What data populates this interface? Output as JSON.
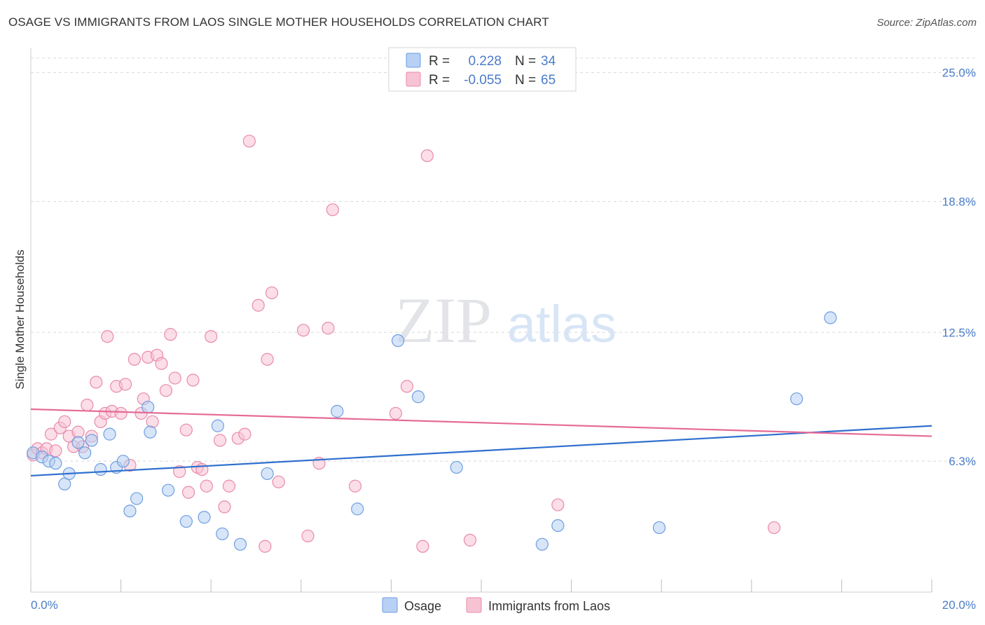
{
  "title": "OSAGE VS IMMIGRANTS FROM LAOS SINGLE MOTHER HOUSEHOLDS CORRELATION CHART",
  "source": "Source: ZipAtlas.com",
  "watermark": {
    "zip": "ZIP",
    "atlas": "atlas"
  },
  "colors": {
    "osage_fill": "#b7d0f4",
    "osage_stroke": "#6e9ee0",
    "osage_line": "#2f6fce",
    "laos_fill": "#f7c3d3",
    "laos_stroke": "#e98aab",
    "laos_line": "#e56b96",
    "accent_text": "#4a7cc8",
    "grid": "#d9d9d9"
  },
  "legend": {
    "rows": [
      {
        "r_label": "R =",
        "r_value": "0.228",
        "n_label": "N =",
        "n_value": "34"
      },
      {
        "r_label": "R =",
        "r_value": "-0.055",
        "n_label": "N =",
        "n_value": "65"
      }
    ]
  },
  "chart_data": {
    "type": "scatter",
    "title": "OSAGE VS IMMIGRANTS FROM LAOS SINGLE MOTHER HOUSEHOLDS CORRELATION CHART",
    "xlabel": "",
    "ylabel": "Single Mother Households",
    "xlim": [
      0,
      20
    ],
    "ylim": [
      0,
      26.2
    ],
    "x_tick_labels": [
      "0.0%",
      "20.0%"
    ],
    "y_ticks": [
      6.3,
      12.5,
      18.8,
      25.0
    ],
    "y_tick_labels": [
      "6.3%",
      "12.5%",
      "18.8%",
      "25.0%"
    ],
    "grid": true,
    "legend_position": "top-center",
    "series": [
      {
        "name": "Osage",
        "r": 0.228,
        "n": 34,
        "trend": {
          "x": [
            0,
            20
          ],
          "y": [
            5.6,
            8.0
          ]
        },
        "points": [
          {
            "x": 0.05,
            "y": 6.7
          },
          {
            "x": 0.25,
            "y": 6.5
          },
          {
            "x": 0.4,
            "y": 6.3
          },
          {
            "x": 0.55,
            "y": 6.2
          },
          {
            "x": 0.75,
            "y": 5.2
          },
          {
            "x": 0.85,
            "y": 5.7
          },
          {
            "x": 1.05,
            "y": 7.2
          },
          {
            "x": 1.2,
            "y": 6.7
          },
          {
            "x": 1.35,
            "y": 7.3
          },
          {
            "x": 1.55,
            "y": 5.9
          },
          {
            "x": 1.75,
            "y": 7.6
          },
          {
            "x": 1.9,
            "y": 6.0
          },
          {
            "x": 2.05,
            "y": 6.3
          },
          {
            "x": 2.2,
            "y": 3.9
          },
          {
            "x": 2.35,
            "y": 4.5
          },
          {
            "x": 2.6,
            "y": 8.9
          },
          {
            "x": 2.65,
            "y": 7.7
          },
          {
            "x": 3.05,
            "y": 4.9
          },
          {
            "x": 3.45,
            "y": 3.4
          },
          {
            "x": 3.85,
            "y": 3.6
          },
          {
            "x": 4.15,
            "y": 8.0
          },
          {
            "x": 4.25,
            "y": 2.8
          },
          {
            "x": 4.65,
            "y": 2.3
          },
          {
            "x": 5.25,
            "y": 5.7
          },
          {
            "x": 6.8,
            "y": 8.7
          },
          {
            "x": 7.25,
            "y": 4.0
          },
          {
            "x": 8.15,
            "y": 12.1
          },
          {
            "x": 8.6,
            "y": 9.4
          },
          {
            "x": 9.45,
            "y": 6.0
          },
          {
            "x": 11.35,
            "y": 2.3
          },
          {
            "x": 11.7,
            "y": 3.2
          },
          {
            "x": 13.95,
            "y": 3.1
          },
          {
            "x": 17.0,
            "y": 9.3
          },
          {
            "x": 17.75,
            "y": 13.2
          }
        ]
      },
      {
        "name": "Immigrants from Laos",
        "r": -0.055,
        "n": 65,
        "trend": {
          "x": [
            0,
            20
          ],
          "y": [
            8.8,
            7.5
          ]
        },
        "points": [
          {
            "x": 0.05,
            "y": 6.6
          },
          {
            "x": 0.15,
            "y": 6.9
          },
          {
            "x": 0.25,
            "y": 6.7
          },
          {
            "x": 0.35,
            "y": 6.9
          },
          {
            "x": 0.45,
            "y": 7.6
          },
          {
            "x": 0.55,
            "y": 6.8
          },
          {
            "x": 0.65,
            "y": 7.9
          },
          {
            "x": 0.75,
            "y": 8.2
          },
          {
            "x": 0.85,
            "y": 7.5
          },
          {
            "x": 0.95,
            "y": 7.0
          },
          {
            "x": 1.05,
            "y": 7.7
          },
          {
            "x": 1.15,
            "y": 7.0
          },
          {
            "x": 1.25,
            "y": 9.0
          },
          {
            "x": 1.35,
            "y": 7.5
          },
          {
            "x": 1.45,
            "y": 10.1
          },
          {
            "x": 1.55,
            "y": 8.2
          },
          {
            "x": 1.65,
            "y": 8.6
          },
          {
            "x": 1.7,
            "y": 12.3
          },
          {
            "x": 1.8,
            "y": 8.7
          },
          {
            "x": 1.9,
            "y": 9.9
          },
          {
            "x": 2.0,
            "y": 8.6
          },
          {
            "x": 2.1,
            "y": 10.0
          },
          {
            "x": 2.2,
            "y": 6.1
          },
          {
            "x": 2.3,
            "y": 11.2
          },
          {
            "x": 2.45,
            "y": 8.6
          },
          {
            "x": 2.5,
            "y": 9.3
          },
          {
            "x": 2.6,
            "y": 11.3
          },
          {
            "x": 2.7,
            "y": 8.2
          },
          {
            "x": 2.8,
            "y": 11.4
          },
          {
            "x": 2.9,
            "y": 11.0
          },
          {
            "x": 3.0,
            "y": 9.7
          },
          {
            "x": 3.1,
            "y": 12.4
          },
          {
            "x": 3.2,
            "y": 10.3
          },
          {
            "x": 3.3,
            "y": 5.8
          },
          {
            "x": 3.45,
            "y": 7.8
          },
          {
            "x": 3.5,
            "y": 4.8
          },
          {
            "x": 3.6,
            "y": 10.2
          },
          {
            "x": 3.7,
            "y": 6.0
          },
          {
            "x": 3.8,
            "y": 5.9
          },
          {
            "x": 3.9,
            "y": 5.1
          },
          {
            "x": 4.0,
            "y": 12.3
          },
          {
            "x": 4.2,
            "y": 7.3
          },
          {
            "x": 4.3,
            "y": 4.1
          },
          {
            "x": 4.4,
            "y": 5.1
          },
          {
            "x": 4.6,
            "y": 7.4
          },
          {
            "x": 4.75,
            "y": 7.6
          },
          {
            "x": 4.85,
            "y": 21.7
          },
          {
            "x": 5.05,
            "y": 13.8
          },
          {
            "x": 5.2,
            "y": 2.2
          },
          {
            "x": 5.25,
            "y": 11.2
          },
          {
            "x": 5.35,
            "y": 14.4
          },
          {
            "x": 5.5,
            "y": 5.3
          },
          {
            "x": 6.05,
            "y": 12.6
          },
          {
            "x": 6.15,
            "y": 2.7
          },
          {
            "x": 6.4,
            "y": 6.2
          },
          {
            "x": 6.6,
            "y": 12.7
          },
          {
            "x": 6.7,
            "y": 18.4
          },
          {
            "x": 7.2,
            "y": 5.1
          },
          {
            "x": 8.1,
            "y": 8.6
          },
          {
            "x": 8.35,
            "y": 9.9
          },
          {
            "x": 8.7,
            "y": 2.2
          },
          {
            "x": 8.8,
            "y": 21.0
          },
          {
            "x": 9.75,
            "y": 2.5
          },
          {
            "x": 11.7,
            "y": 4.2
          },
          {
            "x": 16.5,
            "y": 3.1
          }
        ]
      }
    ]
  }
}
